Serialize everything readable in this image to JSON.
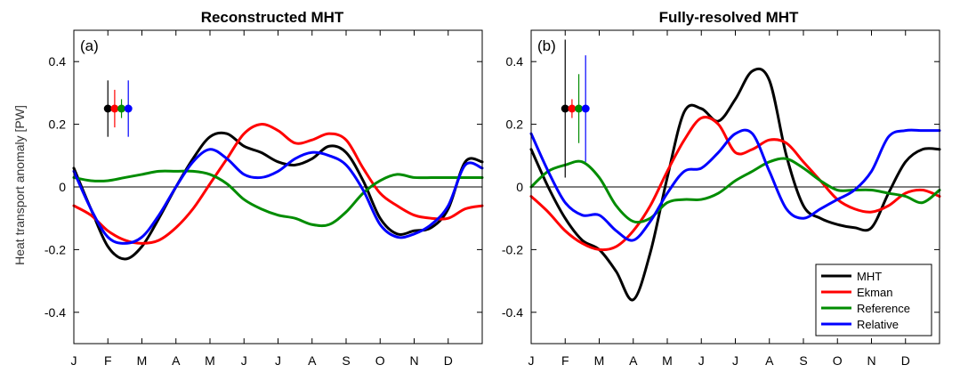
{
  "figure": {
    "ylabel": "Heat transport anomaly [PW]",
    "colors": {
      "MHT": "#000000",
      "Ekman": "#ff0000",
      "Reference": "#008c00",
      "Relative": "#0000ff",
      "axis": "#000000",
      "zero_line": "#000000"
    }
  },
  "chart_data": [
    {
      "type": "line",
      "title": "Reconstructed MHT",
      "panel_label": "(a)",
      "xlabel": "",
      "ylabel": "Heat transport anomaly [PW]",
      "xlim": [
        0,
        12
      ],
      "ylim": [
        -0.5,
        0.5
      ],
      "yticks": [
        -0.4,
        -0.2,
        0,
        0.2,
        0.4
      ],
      "ytick_labels": [
        "-0.4",
        "-0.2",
        "0",
        "0.2",
        "0.4"
      ],
      "categories": [
        "J",
        "F",
        "M",
        "A",
        "M",
        "J",
        "J",
        "A",
        "S",
        "O",
        "N",
        "D"
      ],
      "grid": false,
      "legend": null,
      "series": [
        {
          "name": "MHT",
          "color": "#000000",
          "x": [
            0,
            0.5,
            1,
            1.5,
            2,
            2.5,
            3,
            3.5,
            4,
            4.5,
            5,
            5.5,
            6,
            6.5,
            7,
            7.5,
            8,
            8.5,
            9,
            9.5,
            10,
            10.5,
            11,
            11.5,
            12
          ],
          "y": [
            0.06,
            -0.07,
            -0.19,
            -0.23,
            -0.19,
            -0.1,
            0.0,
            0.09,
            0.16,
            0.17,
            0.13,
            0.11,
            0.08,
            0.07,
            0.09,
            0.13,
            0.11,
            0.02,
            -0.1,
            -0.15,
            -0.14,
            -0.13,
            -0.07,
            0.08,
            0.08
          ]
        },
        {
          "name": "Ekman",
          "color": "#ff0000",
          "x": [
            0,
            0.5,
            1,
            1.5,
            2,
            2.5,
            3,
            3.5,
            4,
            4.5,
            5,
            5.5,
            6,
            6.5,
            7,
            7.5,
            8,
            8.5,
            9,
            9.5,
            10,
            10.5,
            11,
            11.5,
            12
          ],
          "y": [
            -0.06,
            -0.09,
            -0.14,
            -0.17,
            -0.18,
            -0.17,
            -0.13,
            -0.07,
            0.01,
            0.09,
            0.17,
            0.2,
            0.18,
            0.14,
            0.15,
            0.17,
            0.15,
            0.06,
            -0.02,
            -0.06,
            -0.09,
            -0.1,
            -0.1,
            -0.07,
            -0.06
          ]
        },
        {
          "name": "Reference",
          "color": "#008c00",
          "x": [
            0,
            0.5,
            1,
            1.5,
            2,
            2.5,
            3,
            3.5,
            4,
            4.5,
            5,
            5.5,
            6,
            6.5,
            7,
            7.5,
            8,
            8.5,
            9,
            9.5,
            10,
            10.5,
            11,
            11.5,
            12
          ],
          "y": [
            0.03,
            0.02,
            0.02,
            0.03,
            0.04,
            0.05,
            0.05,
            0.05,
            0.04,
            0.01,
            -0.04,
            -0.07,
            -0.09,
            -0.1,
            -0.12,
            -0.12,
            -0.08,
            -0.02,
            0.02,
            0.04,
            0.03,
            0.03,
            0.03,
            0.03,
            0.03
          ]
        },
        {
          "name": "Relative",
          "color": "#0000ff",
          "x": [
            0,
            0.5,
            1,
            1.5,
            2,
            2.5,
            3,
            3.5,
            4,
            4.5,
            5,
            5.5,
            6,
            6.5,
            7,
            7.5,
            8,
            8.5,
            9,
            9.5,
            10,
            10.5,
            11,
            11.5,
            12
          ],
          "y": [
            0.05,
            -0.07,
            -0.16,
            -0.18,
            -0.16,
            -0.09,
            0.0,
            0.08,
            0.12,
            0.09,
            0.04,
            0.03,
            0.05,
            0.09,
            0.11,
            0.1,
            0.07,
            -0.01,
            -0.12,
            -0.16,
            -0.15,
            -0.12,
            -0.06,
            0.07,
            0.06
          ]
        }
      ],
      "error_bars": [
        {
          "name": "MHT",
          "x": 1.0,
          "y": 0.25,
          "low": 0.16,
          "high": 0.34,
          "color": "#000000"
        },
        {
          "name": "Ekman",
          "x": 1.2,
          "y": 0.25,
          "low": 0.19,
          "high": 0.31,
          "color": "#ff0000"
        },
        {
          "name": "Reference",
          "x": 1.4,
          "y": 0.25,
          "low": 0.22,
          "high": 0.28,
          "color": "#008c00"
        },
        {
          "name": "Relative",
          "x": 1.6,
          "y": 0.25,
          "low": 0.16,
          "high": 0.34,
          "color": "#0000ff"
        }
      ]
    },
    {
      "type": "line",
      "title": "Fully-resolved MHT",
      "panel_label": "(b)",
      "xlabel": "",
      "ylabel": "",
      "xlim": [
        0,
        12
      ],
      "ylim": [
        -0.5,
        0.5
      ],
      "yticks": [
        -0.4,
        -0.2,
        0,
        0.2,
        0.4
      ],
      "ytick_labels": [
        "-0.4",
        "-0.2",
        "0",
        "0.2",
        "0.4"
      ],
      "categories": [
        "J",
        "F",
        "M",
        "A",
        "M",
        "J",
        "J",
        "A",
        "S",
        "O",
        "N",
        "D"
      ],
      "grid": false,
      "legend": "bottom-right",
      "series": [
        {
          "name": "MHT",
          "color": "#000000",
          "x": [
            0,
            0.5,
            1,
            1.5,
            2,
            2.5,
            3,
            3.5,
            4,
            4.5,
            5,
            5.5,
            6,
            6.5,
            7,
            7.5,
            8,
            8.5,
            9,
            9.5,
            10,
            10.5,
            11,
            11.5,
            12
          ],
          "y": [
            0.12,
            0.0,
            -0.1,
            -0.17,
            -0.2,
            -0.27,
            -0.36,
            -0.21,
            0.03,
            0.24,
            0.25,
            0.21,
            0.28,
            0.37,
            0.34,
            0.1,
            -0.06,
            -0.1,
            -0.12,
            -0.13,
            -0.13,
            -0.02,
            0.08,
            0.12,
            0.12
          ]
        },
        {
          "name": "Ekman",
          "color": "#ff0000",
          "x": [
            0,
            0.5,
            1,
            1.5,
            2,
            2.5,
            3,
            3.5,
            4,
            4.5,
            5,
            5.5,
            6,
            6.5,
            7,
            7.5,
            8,
            8.5,
            9,
            9.5,
            10,
            10.5,
            11,
            11.5,
            12
          ],
          "y": [
            -0.03,
            -0.08,
            -0.14,
            -0.18,
            -0.2,
            -0.19,
            -0.14,
            -0.06,
            0.05,
            0.15,
            0.22,
            0.2,
            0.11,
            0.12,
            0.15,
            0.14,
            0.08,
            0.02,
            -0.04,
            -0.07,
            -0.08,
            -0.06,
            -0.02,
            -0.01,
            -0.03
          ]
        },
        {
          "name": "Reference",
          "color": "#008c00",
          "x": [
            0,
            0.5,
            1,
            1.5,
            2,
            2.5,
            3,
            3.5,
            4,
            4.5,
            5,
            5.5,
            6,
            6.5,
            7,
            7.5,
            8,
            8.5,
            9,
            9.5,
            10,
            10.5,
            11,
            11.5,
            12
          ],
          "y": [
            0.0,
            0.05,
            0.07,
            0.08,
            0.03,
            -0.06,
            -0.11,
            -0.1,
            -0.05,
            -0.04,
            -0.04,
            -0.02,
            0.02,
            0.05,
            0.08,
            0.09,
            0.06,
            0.02,
            -0.01,
            -0.01,
            -0.01,
            -0.02,
            -0.03,
            -0.05,
            -0.01
          ]
        },
        {
          "name": "Relative",
          "color": "#0000ff",
          "x": [
            0,
            0.5,
            1,
            1.5,
            2,
            2.5,
            3,
            3.5,
            4,
            4.5,
            5,
            5.5,
            6,
            6.5,
            7,
            7.5,
            8,
            8.5,
            9,
            9.5,
            10,
            10.5,
            11,
            11.5,
            12
          ],
          "y": [
            0.17,
            0.05,
            -0.05,
            -0.09,
            -0.09,
            -0.14,
            -0.17,
            -0.11,
            -0.02,
            0.05,
            0.06,
            0.11,
            0.17,
            0.17,
            0.05,
            -0.07,
            -0.1,
            -0.07,
            -0.04,
            -0.01,
            0.05,
            0.16,
            0.18,
            0.18,
            0.18
          ]
        }
      ],
      "error_bars": [
        {
          "name": "MHT",
          "x": 1.0,
          "y": 0.25,
          "low": 0.03,
          "high": 0.47,
          "color": "#000000"
        },
        {
          "name": "Ekman",
          "x": 1.2,
          "y": 0.25,
          "low": 0.22,
          "high": 0.28,
          "color": "#ff0000"
        },
        {
          "name": "Reference",
          "x": 1.4,
          "y": 0.25,
          "low": 0.14,
          "high": 0.36,
          "color": "#008c00"
        },
        {
          "name": "Relative",
          "x": 1.6,
          "y": 0.25,
          "low": 0.08,
          "high": 0.42,
          "color": "#0000ff"
        }
      ]
    }
  ]
}
